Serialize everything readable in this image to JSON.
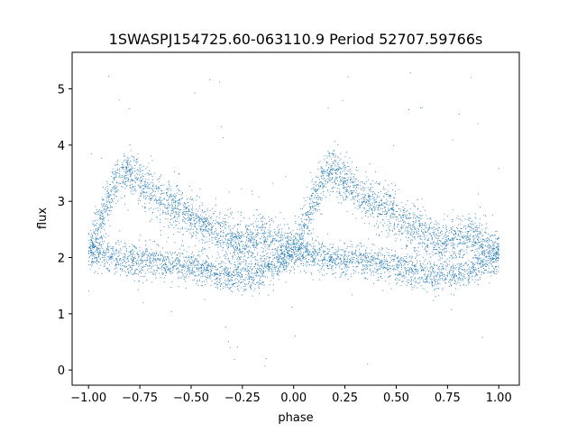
{
  "chart_data": {
    "type": "scatter",
    "title": "1SWASPJ154725.60-063110.9 Period 52707.59766s",
    "xlabel": "phase",
    "ylabel": "flux",
    "xlim": [
      -1.08,
      1.1
    ],
    "ylim": [
      -0.27,
      5.65
    ],
    "xticks": [
      -1.0,
      -0.75,
      -0.5,
      -0.25,
      0.0,
      0.25,
      0.5,
      0.75,
      1.0
    ],
    "xtick_labels": [
      "−1.00",
      "−0.75",
      "−0.50",
      "−0.25",
      "0.00",
      "0.25",
      "0.50",
      "0.75",
      "1.00"
    ],
    "yticks": [
      0,
      1,
      2,
      3,
      4,
      5
    ],
    "ytick_labels": [
      "0",
      "1",
      "2",
      "3",
      "4",
      "5"
    ],
    "grid": false,
    "marker_color": "#1f77b4",
    "phase_range": [
      -1.0,
      1.0
    ],
    "upper_branch": {
      "phase": [
        0.0,
        0.05,
        0.1,
        0.15,
        0.2,
        0.25,
        0.3,
        0.35,
        0.4,
        0.45,
        0.5,
        0.55,
        0.6,
        0.65,
        0.7,
        0.75,
        0.8,
        0.85,
        0.9,
        0.95,
        1.0
      ],
      "flux": [
        2.15,
        2.55,
        3.05,
        3.45,
        3.55,
        3.35,
        3.2,
        3.05,
        2.95,
        2.85,
        2.75,
        2.6,
        2.5,
        2.4,
        2.3,
        2.3,
        2.35,
        2.4,
        2.3,
        2.2,
        2.15
      ]
    },
    "lower_branch": {
      "phase": [
        0.0,
        0.1,
        0.2,
        0.3,
        0.4,
        0.5,
        0.6,
        0.7,
        0.8,
        0.9,
        1.0
      ],
      "flux": [
        2.1,
        2.05,
        1.95,
        1.95,
        1.9,
        1.85,
        1.75,
        1.65,
        1.7,
        1.85,
        2.05
      ]
    },
    "scatter_sigma": 0.18,
    "outlier_range": [
      0.0,
      5.45
    ]
  }
}
